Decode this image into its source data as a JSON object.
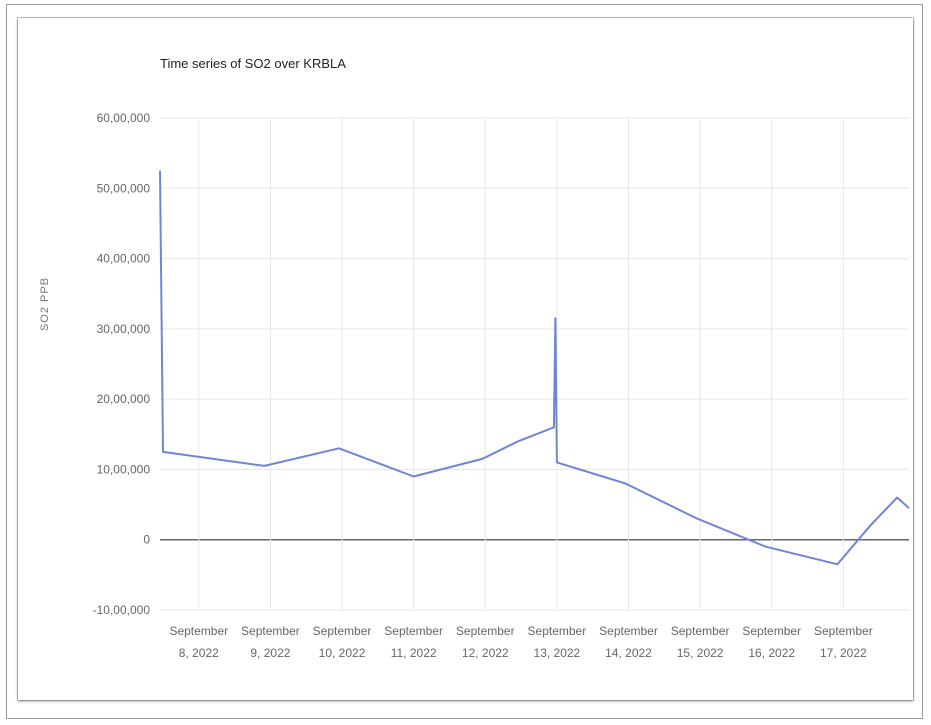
{
  "colors": {
    "line": "#6f86d6",
    "grid": "#e6e6e6",
    "zero_line": "#666666",
    "text": "#666666"
  },
  "chart_data": {
    "type": "line",
    "title": "Time series of SO2 over KRBLA",
    "xlabel": "",
    "ylabel": "SO2 PPB",
    "ylim": [
      -1000000,
      6000000
    ],
    "y_ticks": [
      -1000000,
      0,
      1000000,
      2000000,
      3000000,
      4000000,
      5000000,
      6000000
    ],
    "y_tick_labels": [
      "-10,00,000",
      "0",
      "10,00,000",
      "20,00,000",
      "30,00,000",
      "40,00,000",
      "50,00,000",
      "60,00,000"
    ],
    "x_range": [
      "2022-09-07T11:00",
      "2022-09-17T22:00"
    ],
    "x_tick_dates": [
      "2022-09-08",
      "2022-09-09",
      "2022-09-10",
      "2022-09-11",
      "2022-09-12",
      "2022-09-13",
      "2022-09-14",
      "2022-09-15",
      "2022-09-16",
      "2022-09-17"
    ],
    "x_tick_labels": [
      [
        "September",
        "8, 2022"
      ],
      [
        "September",
        "9, 2022"
      ],
      [
        "September",
        "10, 2022"
      ],
      [
        "September",
        "11, 2022"
      ],
      [
        "September",
        "12, 2022"
      ],
      [
        "September",
        "13, 2022"
      ],
      [
        "September",
        "14, 2022"
      ],
      [
        "September",
        "15, 2022"
      ],
      [
        "September",
        "16, 2022"
      ],
      [
        "September",
        "17, 2022"
      ]
    ],
    "grid": true,
    "series": [
      {
        "name": "",
        "points": [
          {
            "x": "2022-09-07T11:00",
            "y": 5250000
          },
          {
            "x": "2022-09-07T12:00",
            "y": 1250000
          },
          {
            "x": "2022-09-08T22:00",
            "y": 1050000
          },
          {
            "x": "2022-09-09T23:00",
            "y": 1300000
          },
          {
            "x": "2022-09-11T00:00",
            "y": 900000
          },
          {
            "x": "2022-09-11T23:00",
            "y": 1150000
          },
          {
            "x": "2022-09-12T11:00",
            "y": 1400000
          },
          {
            "x": "2022-09-12T23:00",
            "y": 1600000
          },
          {
            "x": "2022-09-12T23:30",
            "y": 3150000
          },
          {
            "x": "2022-09-13T00:00",
            "y": 1100000
          },
          {
            "x": "2022-09-13T23:00",
            "y": 800000
          },
          {
            "x": "2022-09-14T23:00",
            "y": 300000
          },
          {
            "x": "2022-09-15T22:00",
            "y": -100000
          },
          {
            "x": "2022-09-16T22:00",
            "y": -350000
          },
          {
            "x": "2022-09-17T09:00",
            "y": 200000
          },
          {
            "x": "2022-09-17T18:00",
            "y": 600000
          },
          {
            "x": "2022-09-17T22:00",
            "y": 450000
          }
        ]
      }
    ]
  }
}
